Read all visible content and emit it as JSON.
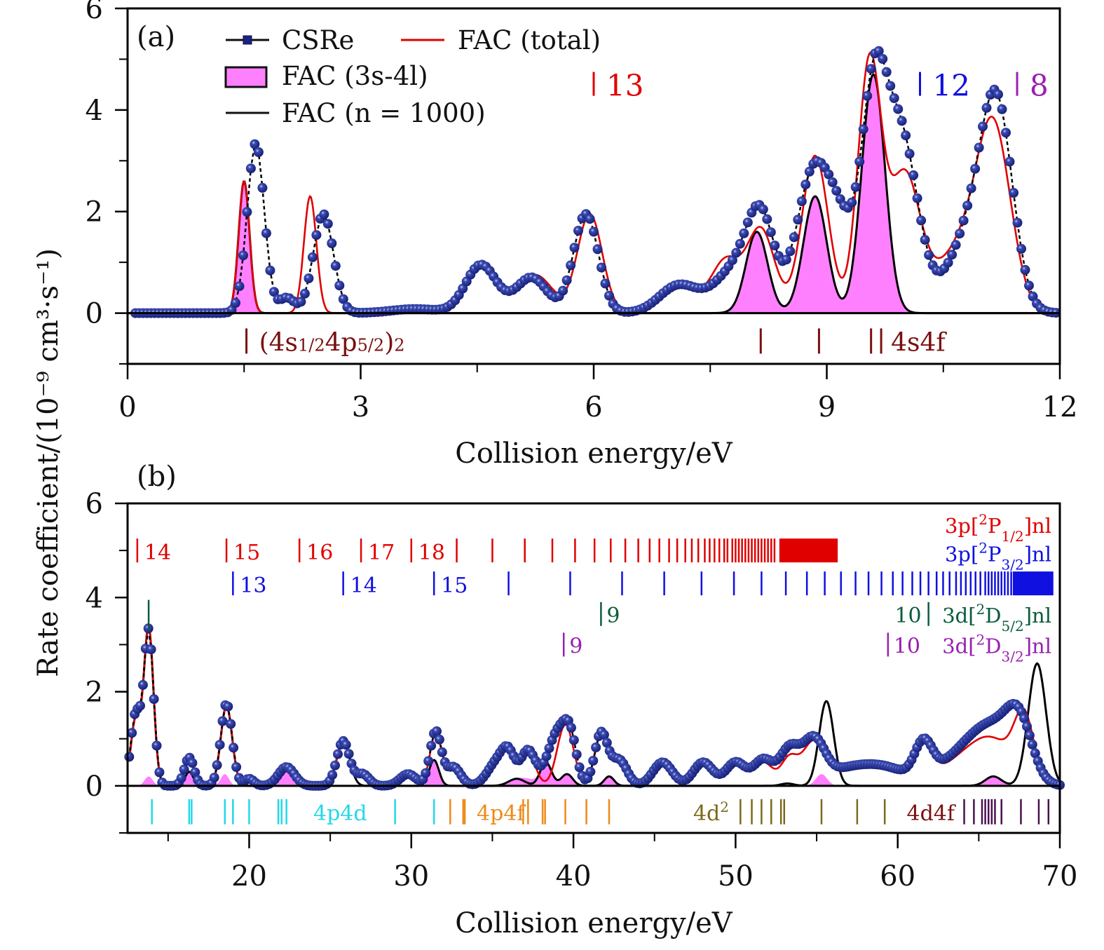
{
  "chart_data": [
    {
      "panel": "(a)",
      "type": "line",
      "xlabel": "Collision energy/eV",
      "ylabel": "Rate coefficient/(10⁻⁹ cm³·s⁻¹)",
      "xlim": [
        0,
        12
      ],
      "ylim": [
        -1,
        6
      ],
      "xticks": [
        0,
        3,
        6,
        9,
        12
      ],
      "xticks_minor": [
        1.5,
        4.5,
        7.5,
        10.5
      ],
      "yticks": [
        0,
        2,
        4,
        6
      ],
      "yticks_minor": [
        -1,
        1,
        3,
        5
      ],
      "grid": false,
      "legend": {
        "placement": "top-left",
        "entries": [
          {
            "label": "CSRe",
            "style": "circle-markers",
            "color": "#1a237e"
          },
          {
            "label": "FAC (total)",
            "style": "line",
            "color": "#e00000"
          },
          {
            "label": "FAC (3s-4l)",
            "style": "filled",
            "color": "#ff80ff"
          },
          {
            "label": "FAC (n = 1000)",
            "style": "line",
            "color": "#000000"
          }
        ]
      },
      "series": [
        {
          "name": "CSRe",
          "color": "#1a237e",
          "peaks": [
            [
              1.65,
              3.35,
              0.11
            ],
            [
              2.05,
              0.3,
              0.1
            ],
            [
              2.52,
              1.95,
              0.13
            ],
            [
              3.7,
              0.08,
              0.3
            ],
            [
              4.55,
              0.95,
              0.2
            ],
            [
              5.2,
              0.7,
              0.2
            ],
            [
              5.9,
              1.95,
              0.16
            ],
            [
              7.1,
              0.55,
              0.25
            ],
            [
              7.8,
              0.8,
              0.25
            ],
            [
              8.15,
              1.8,
              0.18
            ],
            [
              8.8,
              2.5,
              0.2
            ],
            [
              9.15,
              1.7,
              0.2
            ],
            [
              9.6,
              3.9,
              0.16
            ],
            [
              9.95,
              3.5,
              0.22
            ],
            [
              10.9,
              1.7,
              0.3
            ],
            [
              11.2,
              3.3,
              0.2
            ]
          ],
          "xrange": [
            0.1,
            11.95
          ],
          "points": 240
        },
        {
          "name": "FAC (total)",
          "color": "#e00000",
          "peaks": [
            [
              1.5,
              2.6,
              0.07
            ],
            [
              2.35,
              2.3,
              0.08
            ],
            [
              4.55,
              1.0,
              0.2
            ],
            [
              5.25,
              0.75,
              0.22
            ],
            [
              5.95,
              1.95,
              0.16
            ],
            [
              7.1,
              0.55,
              0.25
            ],
            [
              7.7,
              1.0,
              0.18
            ],
            [
              8.15,
              1.65,
              0.18
            ],
            [
              8.85,
              3.1,
              0.17
            ],
            [
              9.55,
              4.9,
              0.15
            ],
            [
              10.0,
              2.7,
              0.2
            ],
            [
              10.7,
              1.2,
              0.3
            ],
            [
              11.15,
              3.45,
              0.22
            ]
          ],
          "xrange": [
            0,
            12
          ]
        },
        {
          "name": "FAC (3s-4l)",
          "color": "#ff80ff",
          "peaks": [
            [
              1.5,
              2.6,
              0.07
            ],
            [
              8.1,
              1.6,
              0.14
            ],
            [
              8.85,
              2.3,
              0.15
            ],
            [
              9.6,
              4.7,
              0.15
            ]
          ],
          "xrange": [
            0,
            12
          ]
        },
        {
          "name": "FAC (n = 1000)",
          "color": "#000000",
          "peaks": [
            [
              1.5,
              2.6,
              0.07
            ],
            [
              8.1,
              1.6,
              0.14
            ],
            [
              8.85,
              2.3,
              0.15
            ],
            [
              9.6,
              4.7,
              0.15
            ]
          ],
          "xrange": [
            0,
            12
          ]
        }
      ],
      "annotations": [
        {
          "text": "13",
          "x": 6.0,
          "y": 4.5,
          "color": "#e00000",
          "size": "large"
        },
        {
          "text": "12",
          "x": 10.2,
          "y": 4.5,
          "color": "#1010e0",
          "size": "large"
        },
        {
          "text": "8",
          "x": 11.45,
          "y": 4.5,
          "color": "#9a1fb0",
          "size": "large"
        }
      ],
      "level_markers": {
        "color": "#7a1010",
        "y": -0.55,
        "x": [
          1.53,
          8.15,
          8.9,
          9.57,
          9.7
        ],
        "labels": [
          {
            "text": "(4s₁/₂4p₅/₂)₂",
            "x": 1.53
          },
          {
            "text": "4s4f",
            "x": 9.7
          }
        ]
      },
      "series_markers_unused": null
    },
    {
      "panel": "(b)",
      "type": "line",
      "xlabel": "Collision energy/eV",
      "xlim": [
        12.5,
        70
      ],
      "ylim": [
        -1,
        6
      ],
      "xticks": [
        20,
        30,
        40,
        50,
        60,
        70
      ],
      "xticks_minor": [
        15,
        25,
        35,
        45,
        55,
        65
      ],
      "yticks": [
        0,
        2,
        4,
        6
      ],
      "yticks_minor": [
        -1,
        1,
        3,
        5
      ],
      "grid": false,
      "series": [
        {
          "name": "CSRe",
          "color": "#1a237e",
          "peaks": [
            [
              13.0,
              1.5,
              0.3
            ],
            [
              13.8,
              3.3,
              0.3
            ],
            [
              16.3,
              0.6,
              0.3
            ],
            [
              18.6,
              1.75,
              0.35
            ],
            [
              20.0,
              0.15,
              0.3
            ],
            [
              22.3,
              0.4,
              0.5
            ],
            [
              25.8,
              0.95,
              0.4
            ],
            [
              27.0,
              0.25,
              0.4
            ],
            [
              29.8,
              0.25,
              0.5
            ],
            [
              31.5,
              1.15,
              0.35
            ],
            [
              32.6,
              0.4,
              0.45
            ],
            [
              35.3,
              0.5,
              0.6
            ],
            [
              36.0,
              0.55,
              0.4
            ],
            [
              37.2,
              0.75,
              0.45
            ],
            [
              39.0,
              1.1,
              0.6
            ],
            [
              39.8,
              0.85,
              0.4
            ],
            [
              41.7,
              1.1,
              0.4
            ],
            [
              42.8,
              0.55,
              0.5
            ],
            [
              45.5,
              0.5,
              0.6
            ],
            [
              48.0,
              0.5,
              0.6
            ],
            [
              50.0,
              0.5,
              0.6
            ],
            [
              51.7,
              0.55,
              0.6
            ],
            [
              53.3,
              0.75,
              0.6
            ],
            [
              54.8,
              0.95,
              0.7
            ],
            [
              56.7,
              0.25,
              1.2
            ],
            [
              59.0,
              0.4,
              1.5
            ],
            [
              61.6,
              0.75,
              0.55
            ],
            [
              64.0,
              0.6,
              1.5
            ],
            [
              66.0,
              1.0,
              1.3
            ],
            [
              67.5,
              1.1,
              0.8
            ]
          ],
          "xrange": [
            12.6,
            70
          ],
          "points": 340
        },
        {
          "name": "FAC (total)",
          "color": "#e00000",
          "peaks": [
            [
              13.0,
              1.4,
              0.3
            ],
            [
              13.8,
              3.35,
              0.3
            ],
            [
              16.3,
              0.55,
              0.3
            ],
            [
              18.6,
              1.7,
              0.35
            ],
            [
              20.0,
              0.15,
              0.3
            ],
            [
              22.3,
              0.45,
              0.5
            ],
            [
              25.8,
              0.95,
              0.4
            ],
            [
              27.0,
              0.25,
              0.4
            ],
            [
              29.8,
              0.25,
              0.5
            ],
            [
              31.5,
              1.1,
              0.35
            ],
            [
              32.6,
              0.4,
              0.45
            ],
            [
              35.3,
              0.5,
              0.6
            ],
            [
              36.0,
              0.5,
              0.4
            ],
            [
              37.2,
              0.7,
              0.45
            ],
            [
              39.5,
              1.3,
              0.5
            ],
            [
              41.7,
              1.05,
              0.4
            ],
            [
              42.8,
              0.5,
              0.5
            ],
            [
              45.5,
              0.5,
              0.6
            ],
            [
              48.0,
              0.5,
              0.6
            ],
            [
              50.0,
              0.45,
              0.6
            ],
            [
              51.7,
              0.5,
              0.6
            ],
            [
              53.3,
              0.55,
              0.5
            ],
            [
              54.8,
              0.9,
              0.7
            ],
            [
              56.7,
              0.2,
              1.2
            ],
            [
              59.0,
              0.35,
              1.5
            ],
            [
              61.6,
              0.7,
              0.55
            ],
            [
              64.0,
              0.5,
              1.5
            ],
            [
              66.0,
              0.8,
              1.3
            ],
            [
              67.8,
              1.3,
              0.6
            ]
          ],
          "xrange": [
            12.6,
            70
          ]
        },
        {
          "name": "FAC (3s-4l)",
          "color": "#ff80ff",
          "peaks": [
            [
              13.8,
              0.2,
              0.25
            ],
            [
              16.3,
              0.3,
              0.25
            ],
            [
              18.5,
              0.25,
              0.25
            ],
            [
              22.3,
              0.45,
              0.45
            ],
            [
              31.4,
              0.55,
              0.3
            ],
            [
              36.5,
              0.15,
              0.5
            ],
            [
              37.3,
              0.1,
              0.4
            ],
            [
              38.3,
              0.5,
              0.35
            ],
            [
              39.6,
              0.25,
              0.35
            ],
            [
              42.2,
              0.2,
              0.3
            ],
            [
              55.3,
              0.25,
              0.35
            ],
            [
              65.9,
              0.2,
              0.5
            ]
          ],
          "xrange": [
            12.6,
            70
          ]
        },
        {
          "name": "FAC (n = 1000)",
          "color": "#000000",
          "peaks": [
            [
              13.0,
              1.4,
              0.3
            ],
            [
              13.8,
              3.35,
              0.3
            ],
            [
              16.3,
              0.3,
              0.25
            ],
            [
              18.6,
              1.7,
              0.35
            ],
            [
              22.3,
              0.45,
              0.45
            ],
            [
              25.8,
              0.95,
              0.4
            ],
            [
              31.4,
              0.55,
              0.3
            ],
            [
              36.5,
              0.15,
              0.5
            ],
            [
              38.3,
              0.5,
              0.35
            ],
            [
              39.6,
              0.25,
              0.35
            ],
            [
              42.2,
              0.2,
              0.3
            ],
            [
              53.2,
              0.05,
              0.4
            ],
            [
              55.6,
              1.8,
              0.45
            ],
            [
              65.9,
              0.2,
              0.5
            ],
            [
              68.6,
              2.6,
              0.55
            ]
          ],
          "xrange": [
            12.6,
            70
          ]
        }
      ],
      "rydberg_series": [
        {
          "label": "3p[²P₁/₂]nl",
          "color": "#e00000",
          "row": 1,
          "start_labels": [
            "14",
            "15",
            "16",
            "17",
            "18"
          ],
          "x": [
            13.1,
            18.6,
            23.1,
            26.9,
            30.0,
            32.8,
            35.0,
            37.0,
            38.7,
            40.1,
            41.3,
            42.3,
            43.2,
            44.0,
            44.7,
            45.3,
            45.9,
            46.4,
            46.9,
            47.3,
            47.7,
            48.1,
            48.4,
            48.7,
            49.0,
            49.3,
            49.5,
            49.8,
            50.0,
            50.2,
            50.4,
            50.6,
            50.8,
            51.0,
            51.2,
            51.4,
            51.6,
            51.8,
            52.0,
            52.2,
            52.4
          ],
          "limit_band": [
            52.7,
            56.3
          ]
        },
        {
          "label": "3p[²P₃/₂]nl",
          "color": "#1010e0",
          "row": 2,
          "start_labels": [
            "13",
            "14",
            "15"
          ],
          "x": [
            19.0,
            25.8,
            31.4,
            36.0,
            39.8,
            43.0,
            45.6,
            47.9,
            49.9,
            51.6,
            53.1,
            54.4,
            55.5,
            56.5,
            57.4,
            58.2,
            59.0,
            59.7,
            60.3,
            60.9,
            61.4,
            61.9,
            62.4,
            62.8,
            63.2,
            63.6,
            63.9,
            64.2,
            64.5,
            64.8,
            65.1,
            65.4,
            65.6,
            65.8,
            66.0,
            66.2,
            66.4,
            66.6,
            66.8,
            67.0
          ],
          "limit_band": [
            67.1,
            69.6
          ]
        },
        {
          "label": "3d[²D₅/₂]nl",
          "color": "#0a5c3c",
          "row": 3,
          "markers": [
            {
              "x": 41.7,
              "label": "9",
              "side": "right"
            },
            {
              "x": 61.9,
              "label": "10",
              "side": "left"
            }
          ],
          "extra_x": [
            13.8
          ]
        },
        {
          "label": "3d[²D₃/₂]nl",
          "color": "#9a1fb0",
          "row": 4,
          "markers": [
            {
              "x": 39.4,
              "label": "9",
              "side": "right"
            },
            {
              "x": 59.4,
              "label": "10",
              "side": "right"
            }
          ]
        }
      ],
      "level_groups": [
        {
          "label": "4p4d",
          "color": "#22d8e8",
          "x": [
            14.0,
            16.3,
            16.45,
            18.5,
            19.0,
            20.0,
            21.8,
            22.0,
            22.3,
            29.0,
            31.4
          ]
        },
        {
          "label": "4p4f",
          "color": "#ee8a1a",
          "x": [
            32.4,
            33.2,
            33.3,
            36.9,
            37.2,
            38.1,
            38.25,
            39.5,
            40.8,
            42.2
          ]
        },
        {
          "label": "4d²",
          "color": "#7a6a1a",
          "x": [
            50.3,
            51.0,
            51.6,
            52.2,
            52.8,
            53.0,
            55.3,
            57.5,
            59.2
          ]
        },
        {
          "label": "4d4f",
          "color": "#4a1050",
          "label_color": "#7a1010",
          "x": [
            64.1,
            64.7,
            65.2,
            65.4,
            65.6,
            65.8,
            66.0,
            66.4,
            67.6,
            68.7,
            69.3
          ]
        }
      ]
    }
  ]
}
